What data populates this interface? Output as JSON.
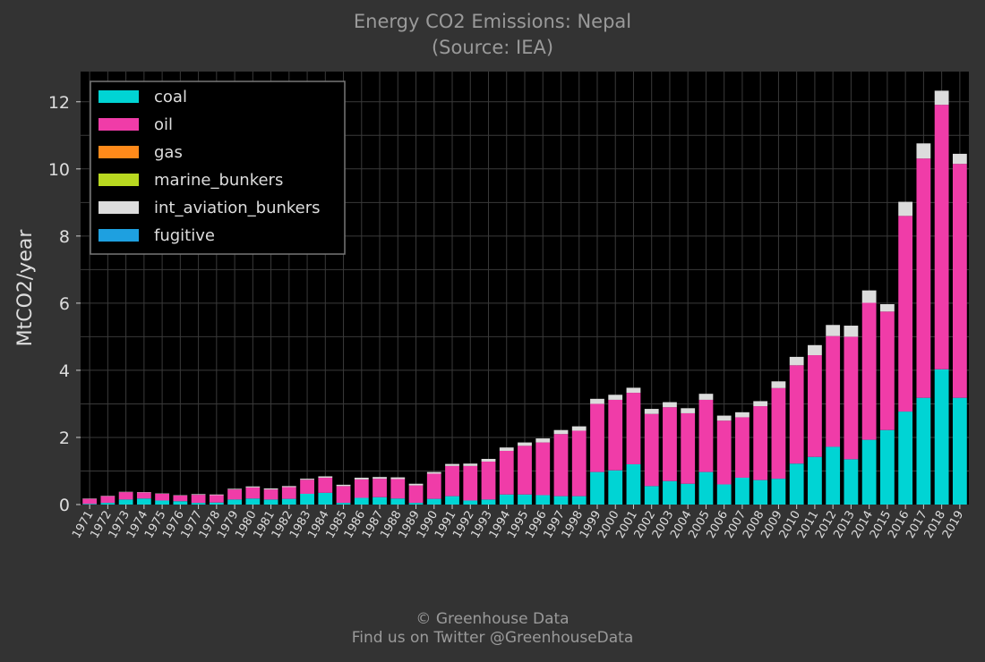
{
  "header": {
    "title": "Energy CO2 Emissions: Nepal",
    "subtitle": "(Source: IEA)"
  },
  "footer": {
    "credit_line1": "© Greenhouse Data",
    "credit_line2": "Find us on Twitter @GreenhouseData"
  },
  "chart_data": {
    "type": "bar",
    "stacked": true,
    "title": "Energy CO2 Emissions: Nepal",
    "subtitle": "(Source: IEA)",
    "xlabel": "",
    "ylabel": "MtCO2/year",
    "ylim": [
      0,
      12.9
    ],
    "yticks": [
      0,
      2,
      4,
      6,
      8,
      10,
      12
    ],
    "grid": true,
    "legend_position": "top-left",
    "background": "#000000",
    "categories": [
      "1971",
      "1972",
      "1973",
      "1974",
      "1975",
      "1976",
      "1977",
      "1978",
      "1979",
      "1980",
      "1981",
      "1982",
      "1983",
      "1984",
      "1985",
      "1986",
      "1987",
      "1988",
      "1989",
      "1990",
      "1991",
      "1992",
      "1993",
      "1994",
      "1995",
      "1996",
      "1997",
      "1998",
      "1999",
      "2000",
      "2001",
      "2002",
      "2003",
      "2004",
      "2005",
      "2006",
      "2007",
      "2008",
      "2009",
      "2010",
      "2011",
      "2012",
      "2013",
      "2014",
      "2015",
      "2016",
      "2017",
      "2018",
      "2019"
    ],
    "series": [
      {
        "name": "coal",
        "color": "#00d4d4",
        "values": [
          0.02,
          0.05,
          0.15,
          0.18,
          0.12,
          0.1,
          0.05,
          0.06,
          0.15,
          0.18,
          0.15,
          0.17,
          0.32,
          0.35,
          0.05,
          0.2,
          0.22,
          0.18,
          0.05,
          0.17,
          0.25,
          0.12,
          0.15,
          0.3,
          0.3,
          0.28,
          0.25,
          0.25,
          0.97,
          1.02,
          1.2,
          0.55,
          0.7,
          0.62,
          0.97,
          0.6,
          0.8,
          0.73,
          0.77,
          1.22,
          1.42,
          1.72,
          1.35,
          1.93,
          2.22,
          2.77,
          3.18,
          4.03,
          3.18
        ]
      },
      {
        "name": "oil",
        "color": "#f03ca8",
        "values": [
          0.15,
          0.2,
          0.22,
          0.18,
          0.2,
          0.17,
          0.24,
          0.22,
          0.3,
          0.33,
          0.3,
          0.35,
          0.42,
          0.45,
          0.5,
          0.55,
          0.55,
          0.58,
          0.52,
          0.75,
          0.9,
          1.03,
          1.13,
          1.3,
          1.45,
          1.57,
          1.85,
          1.95,
          2.03,
          2.1,
          2.13,
          2.15,
          2.2,
          2.1,
          2.15,
          1.9,
          1.8,
          2.2,
          2.7,
          2.93,
          3.03,
          3.3,
          3.65,
          4.08,
          3.53,
          5.83,
          7.13,
          7.88,
          6.97
        ]
      },
      {
        "name": "gas",
        "color": "#ff8a1a",
        "values": [
          0,
          0,
          0,
          0,
          0,
          0,
          0,
          0,
          0,
          0,
          0,
          0,
          0,
          0,
          0,
          0,
          0,
          0,
          0,
          0,
          0,
          0,
          0,
          0,
          0,
          0,
          0,
          0,
          0,
          0,
          0,
          0,
          0,
          0,
          0,
          0,
          0,
          0,
          0,
          0,
          0,
          0,
          0,
          0,
          0,
          0,
          0,
          0,
          0
        ]
      },
      {
        "name": "marine_bunkers",
        "color": "#b8d820",
        "values": [
          0,
          0,
          0,
          0,
          0,
          0,
          0,
          0,
          0,
          0,
          0,
          0,
          0,
          0,
          0,
          0,
          0,
          0,
          0,
          0,
          0,
          0,
          0,
          0,
          0,
          0,
          0,
          0,
          0,
          0,
          0,
          0,
          0,
          0,
          0,
          0,
          0,
          0,
          0,
          0,
          0,
          0,
          0,
          0,
          0,
          0,
          0,
          0,
          0
        ]
      },
      {
        "name": "int_aviation_bunkers",
        "color": "#dcdcdc",
        "values": [
          0.01,
          0.01,
          0.01,
          0.01,
          0.01,
          0.01,
          0.02,
          0.02,
          0.02,
          0.03,
          0.03,
          0.03,
          0.03,
          0.04,
          0.04,
          0.05,
          0.05,
          0.05,
          0.05,
          0.05,
          0.06,
          0.07,
          0.08,
          0.1,
          0.1,
          0.12,
          0.12,
          0.13,
          0.15,
          0.15,
          0.15,
          0.15,
          0.15,
          0.15,
          0.18,
          0.15,
          0.15,
          0.15,
          0.2,
          0.25,
          0.3,
          0.33,
          0.33,
          0.37,
          0.22,
          0.42,
          0.45,
          0.42,
          0.3
        ]
      },
      {
        "name": "fugitive",
        "color": "#1ea0e0",
        "values": [
          0,
          0,
          0,
          0,
          0,
          0,
          0,
          0,
          0,
          0,
          0,
          0,
          0,
          0,
          0,
          0,
          0,
          0,
          0,
          0,
          0,
          0,
          0,
          0,
          0,
          0,
          0,
          0,
          0,
          0,
          0,
          0,
          0,
          0,
          0,
          0,
          0,
          0,
          0,
          0,
          0,
          0,
          0,
          0,
          0,
          0,
          0,
          0,
          0
        ]
      }
    ]
  }
}
